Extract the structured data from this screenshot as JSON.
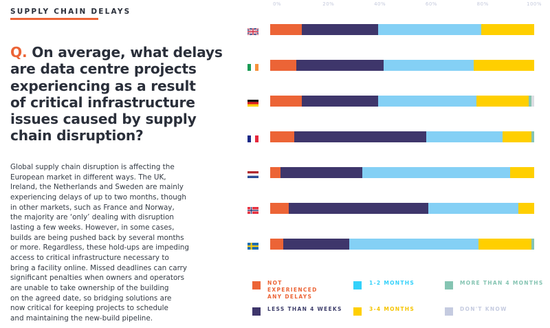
{
  "header": {
    "kicker": "SUPPLY CHAIN DELAYS",
    "question_prefix": "Q.",
    "question_lines": [
      "On average, what delays",
      "are data centre projects",
      "experiencing as a result",
      "of critical infrastructure",
      "issues caused by supply",
      "chain disruption?"
    ],
    "accent": "#ec6436"
  },
  "body_lines": [
    "Global supply chain disruption is affecting the",
    "European market in different ways. The UK,",
    "Ireland, the Netherlands and Sweden are mainly",
    "experiencing delays of up to two months, though",
    "in other markets, such as France and Norway,",
    "the majority are ‘only’ dealing with disruption",
    "lasting a few weeks. However, in some cases,",
    "builds are being pushed back by several months",
    "or more. Regardless, these hold-ups are impeding",
    "access to critical infrastructure necessary to",
    "bring a facility online. Missed deadlines can carry",
    "significant penalties when owners and operators",
    "are unable to take ownership of the building",
    "on the agreed date, so bridging solutions are",
    "now critical for keeping projects to schedule",
    "and maintaining the new-build pipeline."
  ],
  "chart_data": {
    "type": "bar",
    "orientation": "horizontal",
    "stacked": true,
    "xlim": [
      0,
      100
    ],
    "x_ticks": [
      "0%",
      "20%",
      "40%",
      "60%",
      "80%",
      "100%"
    ],
    "categories": [
      "flag-uk",
      "flag-ireland",
      "flag-germany",
      "flag-france",
      "flag-netherlands",
      "flag-norway",
      "flag-sweden"
    ],
    "legend_position": "bottom",
    "series": [
      {
        "name": "NOT EXPERIENCED ANY DELAYS",
        "color": "#ec6436",
        "values": [
          12,
          10,
          12,
          9,
          4,
          7,
          5
        ]
      },
      {
        "name": "LESS THAN 4 WEEKS",
        "color": "#3e366b",
        "values": [
          29,
          33,
          29,
          50,
          31,
          53,
          25
        ]
      },
      {
        "name": "1-2 MONTHS",
        "color": "#84d0f5",
        "values": [
          39,
          34,
          37,
          29,
          56,
          34,
          49
        ]
      },
      {
        "name": "3-4 MONTHS",
        "color": "#ffcf00",
        "values": [
          20,
          23,
          20,
          11,
          9,
          6,
          20
        ]
      },
      {
        "name": "MORE THAN 4 MONTHS",
        "color": "#85c4b2",
        "values": [
          0,
          0,
          1,
          1,
          0,
          0,
          1
        ]
      },
      {
        "name": "DON'T KNOW",
        "color": "#dcdde2",
        "values": [
          0,
          0,
          1,
          0,
          0,
          0,
          0
        ]
      }
    ],
    "legend_colors": [
      "#ec6436",
      "#3e366b",
      "#33d1fa",
      "#ffcf00",
      "#85c4b2",
      "#c5cbe0"
    ],
    "legend_text_colors": [
      "#ec6436",
      "#3e3e6b",
      "#33d1fa",
      "#f5c400",
      "#85c4b2",
      "#c5cbe0"
    ]
  }
}
